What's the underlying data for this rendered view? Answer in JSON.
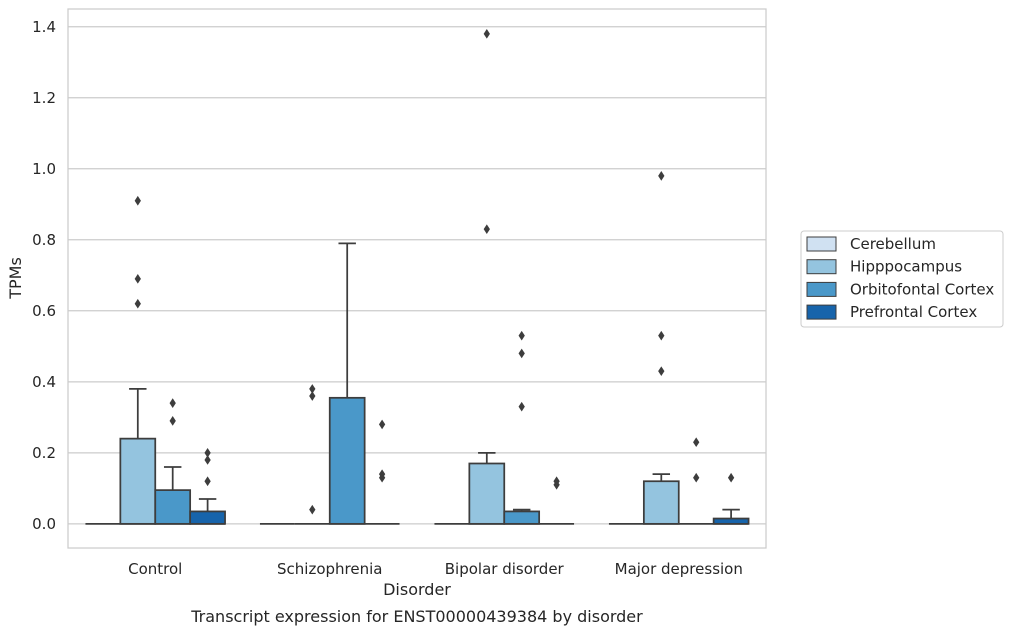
{
  "chart_data": {
    "type": "box",
    "title": "Transcript expression for ENST00000439384 by disorder",
    "xlabel": "Disorder",
    "ylabel": "TPMs",
    "ylim": [
      -0.068,
      1.45
    ],
    "yticks": [
      "0.0",
      "0.2",
      "0.4",
      "0.6",
      "0.8",
      "1.0",
      "1.2",
      "1.4"
    ],
    "grid": "horizontal",
    "legend_position": "right",
    "categories": [
      "Control",
      "Schizophrenia",
      "Bipolar disorder",
      "Major depression"
    ],
    "series": [
      {
        "name": "Cerebellum",
        "color": "#d0e1f2",
        "boxes": [
          {
            "q1": 0,
            "median": 0,
            "q3": 0,
            "whisker_low": 0,
            "whisker_high": 0,
            "outliers": []
          },
          {
            "q1": 0,
            "median": 0,
            "q3": 0,
            "whisker_low": 0,
            "whisker_high": 0,
            "outliers": []
          },
          {
            "q1": 0,
            "median": 0,
            "q3": 0,
            "whisker_low": 0,
            "whisker_high": 0,
            "outliers": []
          },
          {
            "q1": 0,
            "median": 0,
            "q3": 0,
            "whisker_low": 0,
            "whisker_high": 0,
            "outliers": []
          }
        ]
      },
      {
        "name": "Hipppocampus",
        "color": "#94c4df",
        "boxes": [
          {
            "q1": 0,
            "median": 0,
            "q3": 0.24,
            "whisker_low": 0,
            "whisker_high": 0.38,
            "outliers": [
              0.62,
              0.69,
              0.91
            ]
          },
          {
            "q1": 0,
            "median": 0,
            "q3": 0,
            "whisker_low": 0,
            "whisker_high": 0,
            "outliers": [
              0.04,
              0.36,
              0.38
            ]
          },
          {
            "q1": 0,
            "median": 0,
            "q3": 0.17,
            "whisker_low": 0,
            "whisker_high": 0.2,
            "outliers": [
              0.83,
              1.38
            ]
          },
          {
            "q1": 0,
            "median": 0,
            "q3": 0.12,
            "whisker_low": 0,
            "whisker_high": 0.14,
            "outliers": [
              0.43,
              0.53,
              0.98
            ]
          }
        ]
      },
      {
        "name": "Orbitofontal Cortex",
        "color": "#4a98c9",
        "boxes": [
          {
            "q1": 0,
            "median": 0,
            "q3": 0.095,
            "whisker_low": 0,
            "whisker_high": 0.16,
            "outliers": [
              0.29,
              0.34
            ]
          },
          {
            "q1": 0,
            "median": 0,
            "q3": 0.355,
            "whisker_low": 0,
            "whisker_high": 0.79,
            "outliers": []
          },
          {
            "q1": 0,
            "median": 0,
            "q3": 0.035,
            "whisker_low": 0,
            "whisker_high": 0.04,
            "outliers": [
              0.33,
              0.48,
              0.53
            ]
          },
          {
            "q1": 0,
            "median": 0,
            "q3": 0,
            "whisker_low": 0,
            "whisker_high": 0,
            "outliers": [
              0.13,
              0.23
            ]
          }
        ]
      },
      {
        "name": "Prefrontal Cortex",
        "color": "#1764ab",
        "boxes": [
          {
            "q1": 0,
            "median": 0,
            "q3": 0.035,
            "whisker_low": 0,
            "whisker_high": 0.07,
            "outliers": [
              0.12,
              0.18,
              0.2
            ]
          },
          {
            "q1": 0,
            "median": 0,
            "q3": 0,
            "whisker_low": 0,
            "whisker_high": 0,
            "outliers": [
              0.13,
              0.14,
              0.28
            ]
          },
          {
            "q1": 0,
            "median": 0,
            "q3": 0,
            "whisker_low": 0,
            "whisker_high": 0,
            "outliers": [
              0.11,
              0.12
            ]
          },
          {
            "q1": 0,
            "median": 0,
            "q3": 0.015,
            "whisker_low": 0,
            "whisker_high": 0.04,
            "outliers": [
              0.13
            ]
          }
        ]
      }
    ]
  }
}
